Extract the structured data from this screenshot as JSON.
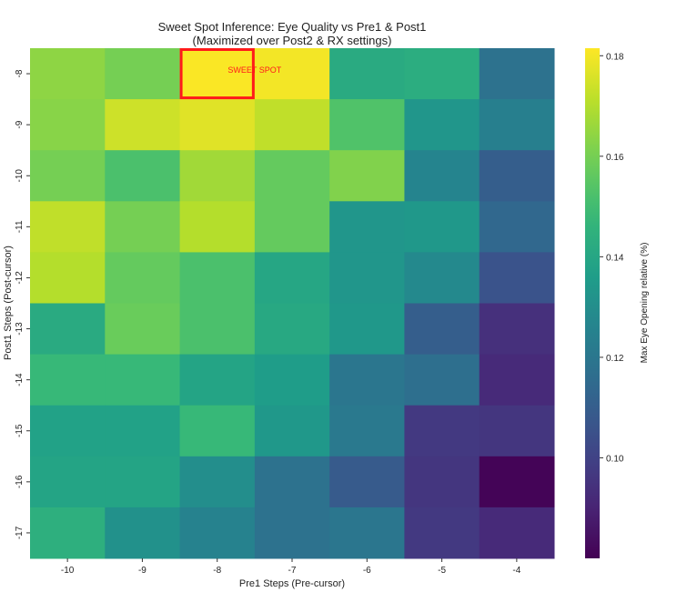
{
  "chart_data": {
    "type": "heatmap",
    "title": [
      "Sweet Spot Inference: Eye Quality vs Pre1 & Post1",
      "(Maximized over Post2 & RX settings)"
    ],
    "xlabel": "Pre1 Steps (Pre-cursor)",
    "ylabel": "Post1 Steps (Post-cursor)",
    "x_categories": [
      "-10",
      "-9",
      "-8",
      "-7",
      "-6",
      "-5",
      "-4"
    ],
    "y_categories": [
      "-8",
      "-9",
      "-10",
      "-11",
      "-12",
      "-13",
      "-14",
      "-15",
      "-16",
      "-17"
    ],
    "values": [
      [
        0.164,
        0.16,
        0.181,
        0.18,
        0.142,
        0.143,
        0.118
      ],
      [
        0.163,
        0.174,
        0.177,
        0.172,
        0.153,
        0.133,
        0.124
      ],
      [
        0.16,
        0.152,
        0.167,
        0.157,
        0.162,
        0.126,
        0.11
      ],
      [
        0.172,
        0.16,
        0.17,
        0.157,
        0.133,
        0.134,
        0.114
      ],
      [
        0.17,
        0.157,
        0.152,
        0.14,
        0.133,
        0.128,
        0.106
      ],
      [
        0.142,
        0.158,
        0.152,
        0.141,
        0.134,
        0.11,
        0.094
      ],
      [
        0.148,
        0.148,
        0.139,
        0.136,
        0.12,
        0.117,
        0.092
      ],
      [
        0.138,
        0.138,
        0.148,
        0.134,
        0.121,
        0.097,
        0.096
      ],
      [
        0.139,
        0.139,
        0.13,
        0.118,
        0.109,
        0.096,
        0.081
      ],
      [
        0.144,
        0.131,
        0.125,
        0.118,
        0.12,
        0.097,
        0.092
      ]
    ],
    "colormap": "viridis",
    "color_range": [
      0.08,
      0.1815
    ],
    "colorbar": {
      "label": "Max Eye Opening relative (%)",
      "ticks": [
        0.1,
        0.12,
        0.14,
        0.16,
        0.18
      ],
      "tick_labels": [
        "0.10",
        "0.12",
        "0.14",
        "0.16",
        "0.18"
      ]
    },
    "annotation": {
      "text": "SWEET SPOT",
      "x": "-8",
      "y": "-8",
      "color": "#ff1a1a"
    }
  }
}
